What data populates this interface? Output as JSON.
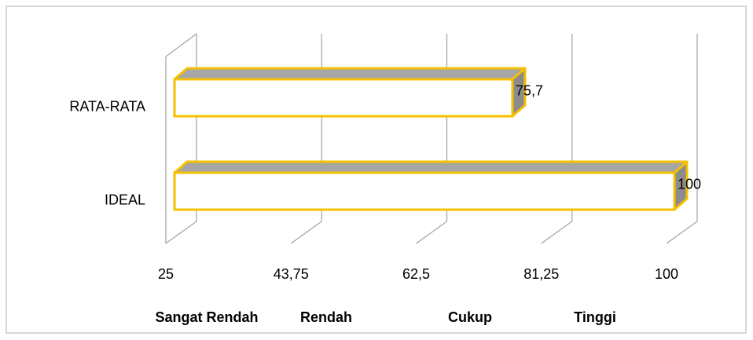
{
  "chart_data": {
    "type": "bar3d_horizontal",
    "categories": [
      "RATA-RATA",
      "IDEAL"
    ],
    "values": [
      75.7,
      100
    ],
    "value_labels": [
      "75,7",
      "100"
    ],
    "color": "#ffffff",
    "edge_color": "#f5c000",
    "top_color": "#a6a6a6",
    "side_color": "#8c8c8c",
    "xlim": [
      25,
      100
    ],
    "xticks": [
      25,
      {
        "value": 43.75,
        "label": "43,75"
      },
      {
        "value": 62.5,
        "label": "62,5"
      },
      {
        "value": 81.25,
        "label": "81,25"
      },
      100
    ],
    "grid": true,
    "range_labels": [
      "Sangat Rendah",
      "Rendah",
      "Cukup",
      "Tinggi"
    ]
  }
}
